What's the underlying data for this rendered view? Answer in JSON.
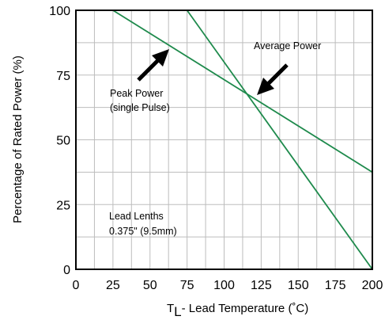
{
  "chart_data": {
    "type": "line",
    "xlabel_main": "T",
    "xlabel_sub": "L",
    "xlabel_rest": "- Lead Temperature (˚C)",
    "ylabel": "Percentage of Rated Power (%)",
    "xlim": [
      0,
      200
    ],
    "ylim": [
      0,
      100
    ],
    "x_ticks": [
      0,
      25,
      50,
      75,
      100,
      125,
      150,
      175,
      200
    ],
    "y_ticks": [
      0,
      25,
      50,
      75,
      100
    ],
    "grid": true,
    "series": [
      {
        "name": "Peak Power (single Pulse)",
        "color": "#1e8a4c",
        "x": [
          25,
          200
        ],
        "y": [
          100,
          37.5
        ]
      },
      {
        "name": "Average Power",
        "color": "#1e8a4c",
        "x": [
          75,
          200
        ],
        "y": [
          100,
          0
        ]
      }
    ],
    "annotations": {
      "peak": [
        "Peak Power",
        "(single Pulse)"
      ],
      "average": [
        "Average Power"
      ],
      "lead": [
        "Lead Lenths",
        "0.375\" (9.5mm)"
      ]
    }
  }
}
